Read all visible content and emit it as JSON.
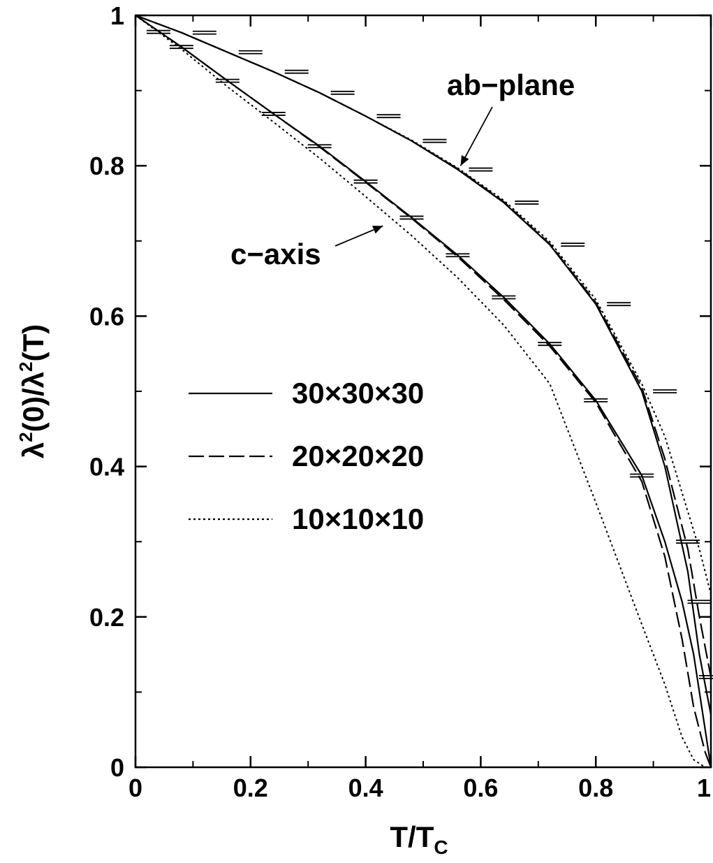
{
  "chart_data": {
    "type": "line",
    "title": "",
    "xlabel": {
      "main": "T/T",
      "sub": "C"
    },
    "ylabel": {
      "p1": "λ",
      "sup1": "2",
      "p2": "(0)/λ",
      "sup2": "2",
      "p3": "(T)"
    },
    "xlim": [
      0,
      1
    ],
    "ylim": [
      0,
      1
    ],
    "xticks": [
      0,
      0.2,
      0.4,
      0.6,
      0.8,
      1
    ],
    "xtick_labels": [
      "0",
      "0.2",
      "0.4",
      "0.6",
      "0.8",
      "1"
    ],
    "yticks": [
      0,
      0.2,
      0.4,
      0.6,
      0.8,
      1
    ],
    "ytick_labels": [
      "0",
      "0.2",
      "0.4",
      "0.6",
      "0.8",
      "1"
    ],
    "grid": false,
    "legend_position": "center-left",
    "series": [
      {
        "name": "30×30×30",
        "style": "solid",
        "group": "ab-plane",
        "x": [
          0,
          0.08,
          0.16,
          0.24,
          0.32,
          0.4,
          0.48,
          0.56,
          0.64,
          0.72,
          0.8,
          0.88,
          0.92,
          0.96,
          0.98,
          1.0
        ],
        "y": [
          1.0,
          0.977,
          0.951,
          0.925,
          0.897,
          0.866,
          0.833,
          0.795,
          0.751,
          0.695,
          0.616,
          0.5,
          0.4,
          0.26,
          0.15,
          0.07
        ]
      },
      {
        "name": "20×20×20",
        "style": "dashed",
        "group": "ab-plane",
        "x": [
          0,
          0.08,
          0.16,
          0.24,
          0.32,
          0.4,
          0.48,
          0.56,
          0.64,
          0.72,
          0.8,
          0.88,
          0.92,
          0.96,
          0.98,
          1.0
        ],
        "y": [
          1.0,
          0.977,
          0.951,
          0.925,
          0.897,
          0.866,
          0.833,
          0.796,
          0.752,
          0.696,
          0.618,
          0.505,
          0.41,
          0.29,
          0.2,
          0.12
        ]
      },
      {
        "name": "10×10×10",
        "style": "dotted",
        "group": "ab-plane",
        "x": [
          0,
          0.08,
          0.16,
          0.24,
          0.32,
          0.4,
          0.48,
          0.56,
          0.64,
          0.72,
          0.8,
          0.88,
          0.92,
          0.96,
          0.98,
          1.0
        ],
        "y": [
          1.0,
          0.977,
          0.951,
          0.925,
          0.897,
          0.866,
          0.834,
          0.797,
          0.754,
          0.699,
          0.622,
          0.51,
          0.44,
          0.34,
          0.29,
          0.23
        ]
      },
      {
        "name": "30×30×30",
        "style": "solid",
        "group": "c-axis",
        "x": [
          0,
          0.08,
          0.16,
          0.24,
          0.32,
          0.4,
          0.48,
          0.56,
          0.64,
          0.72,
          0.8,
          0.88,
          0.92,
          0.95,
          0.97,
          0.99,
          1.0
        ],
        "y": [
          1.0,
          0.958,
          0.913,
          0.869,
          0.826,
          0.779,
          0.731,
          0.681,
          0.625,
          0.563,
          0.488,
          0.388,
          0.3,
          0.22,
          0.15,
          0.05,
          0.0
        ]
      },
      {
        "name": "20×20×20",
        "style": "dashed",
        "group": "c-axis",
        "x": [
          0,
          0.08,
          0.16,
          0.24,
          0.32,
          0.4,
          0.48,
          0.56,
          0.64,
          0.72,
          0.8,
          0.88,
          0.92,
          0.95,
          0.97,
          0.99,
          1.0
        ],
        "y": [
          1.0,
          0.958,
          0.913,
          0.869,
          0.825,
          0.778,
          0.73,
          0.679,
          0.622,
          0.56,
          0.485,
          0.38,
          0.28,
          0.17,
          0.08,
          0.02,
          0.0
        ]
      },
      {
        "name": "10×10×10",
        "style": "dotted",
        "group": "c-axis",
        "x": [
          0,
          0.08,
          0.16,
          0.24,
          0.32,
          0.4,
          0.48,
          0.56,
          0.64,
          0.72,
          0.8,
          0.88,
          0.92,
          0.95,
          0.97,
          0.99,
          1.0
        ],
        "y": [
          1.0,
          0.955,
          0.905,
          0.858,
          0.81,
          0.759,
          0.707,
          0.651,
          0.588,
          0.51,
          0.352,
          0.19,
          0.11,
          0.04,
          0.01,
          0.0,
          0.0
        ]
      }
    ],
    "error_markers": {
      "x": [
        0.04,
        0.08,
        0.12,
        0.16,
        0.2,
        0.24,
        0.28,
        0.32,
        0.36,
        0.4,
        0.44,
        0.48,
        0.52,
        0.56,
        0.6,
        0.64,
        0.68,
        0.72,
        0.76,
        0.8,
        0.84,
        0.88,
        0.92,
        0.96,
        0.98,
        1.0
      ],
      "y": [
        0.978,
        0.958,
        0.977,
        0.913,
        0.951,
        0.869,
        0.925,
        0.826,
        0.897,
        0.779,
        0.866,
        0.731,
        0.833,
        0.681,
        0.795,
        0.625,
        0.751,
        0.563,
        0.695,
        0.488,
        0.616,
        0.388,
        0.5,
        0.3,
        0.22,
        0.12
      ]
    },
    "annotations": [
      {
        "id": "ab-plane",
        "text": "ab−plane",
        "arrow_to": [
          0.565,
          0.8
        ]
      },
      {
        "id": "c-axis",
        "text": "c−axis",
        "arrow_to": [
          0.43,
          0.72
        ]
      }
    ]
  }
}
